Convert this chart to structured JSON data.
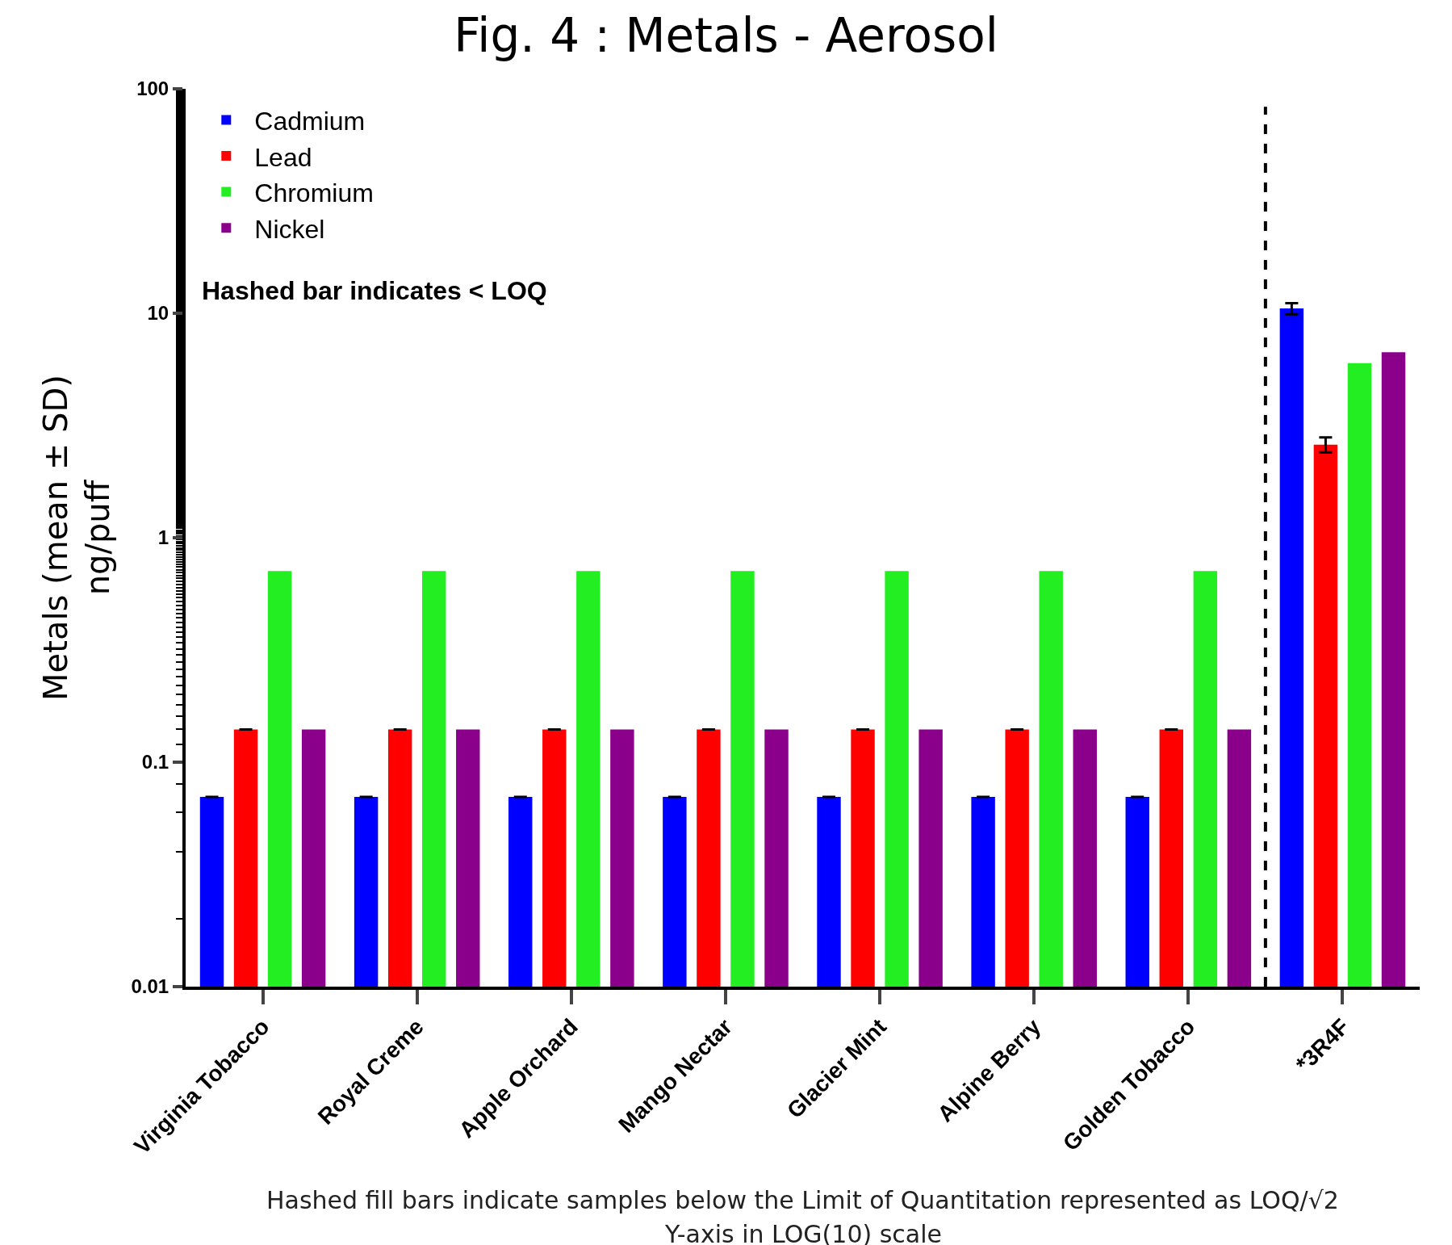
{
  "chart_data": {
    "type": "bar",
    "title": "Fig. 4 : Metals - Aerosol",
    "ylabel": "Metals (mean ± SD)\nng/puff",
    "categories": [
      "Virginia Tobacco",
      "Royal Creme",
      "Apple Orchard",
      "Mango Nectar",
      "Glacier Mint",
      "Alpine Berry",
      "Golden Tobacco",
      "*3R4F"
    ],
    "series": [
      {
        "name": "Cadmium",
        "color": "#0000ff",
        "values": [
          0.07,
          0.07,
          0.07,
          0.07,
          0.07,
          0.07,
          0.07,
          10.5
        ],
        "errors": [
          null,
          null,
          null,
          null,
          null,
          null,
          null,
          0.6
        ]
      },
      {
        "name": "Lead",
        "color": "#ff0000",
        "values": [
          0.14,
          0.14,
          0.14,
          0.14,
          0.14,
          0.14,
          0.14,
          2.6
        ],
        "errors": [
          null,
          null,
          null,
          null,
          null,
          null,
          null,
          0.2
        ]
      },
      {
        "name": "Chromium",
        "color": "#22ee22",
        "values": [
          0.71,
          0.71,
          0.71,
          0.71,
          0.71,
          0.71,
          0.71,
          6.0
        ]
      },
      {
        "name": "Nickel",
        "color": "#8b008b",
        "values": [
          0.14,
          0.14,
          0.14,
          0.14,
          0.14,
          0.14,
          0.14,
          6.7
        ]
      }
    ],
    "log": true,
    "ylim": [
      0.01,
      100
    ],
    "yticks": [
      0.01,
      0.1,
      1,
      10,
      100
    ],
    "legend": "top left",
    "annotations": [
      "Hashed bar indicates < LOQ",
      "Hashed fill bars indicate samples below the Limit of Quantitation represented as LOQ/√2",
      "Y-axis in LOG(10) scale"
    ]
  }
}
